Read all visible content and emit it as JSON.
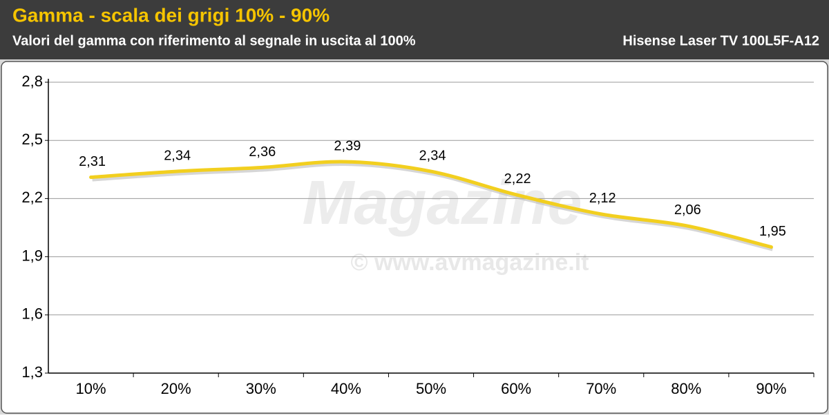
{
  "chart_data": {
    "type": "line",
    "title": "Gamma - scala dei grigi 10% - 90%",
    "subtitle": "Valori del gamma con riferimento al segnale in uscita al 100%",
    "model": "Hisense Laser TV 100L5F-A12",
    "watermark_logo": "Magazine",
    "watermark_url": "© www.avmagazine.it",
    "categories": [
      "10%",
      "20%",
      "30%",
      "40%",
      "50%",
      "60%",
      "70%",
      "80%",
      "90%"
    ],
    "series": [
      {
        "color": "#f2cf1f",
        "values": [
          2.31,
          2.34,
          2.36,
          2.39,
          2.34,
          2.22,
          2.12,
          2.06,
          1.95
        ],
        "value_labels": [
          "2,31",
          "2,34",
          "2,36",
          "2,39",
          "2,34",
          "2,22",
          "2,12",
          "2,06",
          "1,95"
        ]
      }
    ],
    "ylim": [
      1.3,
      2.8
    ],
    "yticks": [
      {
        "value": 1.3,
        "label": "1,3"
      },
      {
        "value": 1.6,
        "label": "1,6"
      },
      {
        "value": 1.9,
        "label": "1,9"
      },
      {
        "value": 2.2,
        "label": "2,2"
      },
      {
        "value": 2.5,
        "label": "2,5"
      },
      {
        "value": 2.8,
        "label": "2,8"
      }
    ],
    "grid": true
  }
}
